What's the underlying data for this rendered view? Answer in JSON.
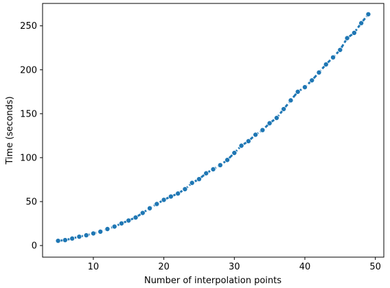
{
  "chart_data": {
    "type": "line",
    "title": "",
    "xlabel": "Number of interpolation points",
    "ylabel": "Time (seconds)",
    "xlim": [
      2.8,
      51.2
    ],
    "ylim": [
      -13.2,
      275.5
    ],
    "xticks": [
      10,
      20,
      30,
      40,
      50
    ],
    "yticks": [
      0,
      50,
      100,
      150,
      200,
      250
    ],
    "grid": false,
    "legend": "none",
    "series": [
      {
        "color": "#1f77b4",
        "marker": "circle",
        "line_style": "dashed",
        "x": [
          5,
          6,
          7,
          8,
          9,
          10,
          11,
          12,
          13,
          14,
          15,
          16,
          17,
          18,
          19,
          20,
          21,
          22,
          23,
          24,
          25,
          26,
          27,
          28,
          29,
          30,
          31,
          32,
          33,
          34,
          35,
          36,
          37,
          38,
          39,
          40,
          41,
          42,
          43,
          44,
          45,
          46,
          47,
          48,
          49
        ],
        "y": [
          5.4,
          6.2,
          8.0,
          10.1,
          11.7,
          13.8,
          15.8,
          18.8,
          21.6,
          25.2,
          28.5,
          31.9,
          37.1,
          42.4,
          47.3,
          52.0,
          55.8,
          59.2,
          64.2,
          71.3,
          75.6,
          82.2,
          86.8,
          91.5,
          97.4,
          105.4,
          113.6,
          118.8,
          126.1,
          131.4,
          139.2,
          145.2,
          155.3,
          165.2,
          175.0,
          180.2,
          188.0,
          196.9,
          206.1,
          214.1,
          222.6,
          236.0,
          242.0,
          253.1,
          263.2
        ]
      }
    ]
  }
}
